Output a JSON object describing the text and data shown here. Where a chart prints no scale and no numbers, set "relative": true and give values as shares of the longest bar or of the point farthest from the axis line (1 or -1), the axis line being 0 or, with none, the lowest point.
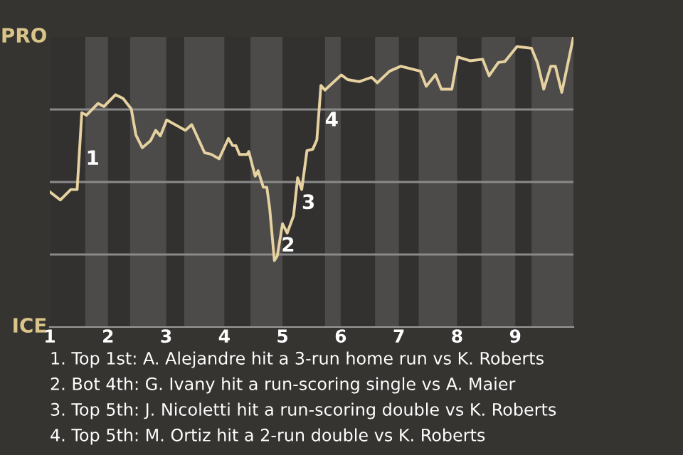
{
  "chart_data": {
    "type": "line",
    "relative": true,
    "x": [
      1.0,
      1.18,
      1.36,
      1.47,
      1.55,
      1.63,
      1.83,
      1.93,
      2.13,
      2.26,
      2.4,
      2.48,
      2.59,
      2.73,
      2.82,
      2.9,
      3.01,
      3.26,
      3.33,
      3.44,
      3.66,
      3.77,
      3.91,
      4.07,
      4.14,
      4.2,
      4.26,
      4.39,
      4.42,
      4.53,
      4.58,
      4.67,
      4.73,
      4.78,
      4.86,
      4.91,
      5.0,
      5.08,
      5.19,
      5.26,
      5.33,
      5.42,
      5.52,
      5.59,
      5.66,
      5.73,
      6.01,
      6.12,
      6.32,
      6.53,
      6.63,
      6.84,
      7.03,
      7.37,
      7.47,
      7.63,
      7.73,
      7.91,
      8.01,
      8.22,
      8.44,
      8.55,
      8.71,
      8.82,
      9.03,
      9.28,
      9.38,
      9.49,
      9.61,
      9.69,
      9.8,
      10.0
    ],
    "series": [
      {
        "color": "#e6d2a0",
        "values": [
          0.466,
          0.438,
          0.474,
          0.474,
          0.739,
          0.73,
          0.771,
          0.76,
          0.801,
          0.788,
          0.752,
          0.662,
          0.618,
          0.642,
          0.678,
          0.659,
          0.714,
          0.686,
          0.678,
          0.698,
          0.601,
          0.596,
          0.58,
          0.65,
          0.626,
          0.625,
          0.595,
          0.595,
          0.605,
          0.52,
          0.539,
          0.482,
          0.482,
          0.408,
          0.229,
          0.245,
          0.356,
          0.324,
          0.384,
          0.515,
          0.474,
          0.608,
          0.613,
          0.645,
          0.833,
          0.817,
          0.869,
          0.853,
          0.846,
          0.861,
          0.842,
          0.882,
          0.899,
          0.882,
          0.83,
          0.87,
          0.82,
          0.82,
          0.931,
          0.918,
          0.923,
          0.866,
          0.912,
          0.915,
          0.967,
          0.961,
          0.912,
          0.82,
          0.899,
          0.899,
          0.809,
          1.0
        ]
      }
    ],
    "xlim": [
      1,
      10
    ],
    "xticks": [
      1,
      2,
      3,
      4,
      5,
      6,
      7,
      8,
      9
    ],
    "grid": "y",
    "bands": [
      {
        "axis": "x",
        "from": 1.61,
        "to": 2,
        "color": "#4c4b4a"
      },
      {
        "axis": "x",
        "from": 2.38,
        "to": 3,
        "color": "#4c4b4a"
      },
      {
        "axis": "x",
        "from": 3.31,
        "to": 4,
        "color": "#4c4b4a"
      },
      {
        "axis": "x",
        "from": 4.45,
        "to": 5,
        "color": "#4c4b4a"
      },
      {
        "axis": "x",
        "from": 5.73,
        "to": 6,
        "color": "#4c4b4a"
      },
      {
        "axis": "x",
        "from": 6.59,
        "to": 7,
        "color": "#4c4b4a"
      },
      {
        "axis": "x",
        "from": 7.34,
        "to": 8,
        "color": "#4c4b4a"
      },
      {
        "axis": "x",
        "from": 8.42,
        "to": 9,
        "color": "#4c4b4a"
      },
      {
        "axis": "x",
        "from": 9.28,
        "to": 10,
        "color": "#4c4b4a"
      }
    ],
    "annotations": [
      "PRO",
      "ICE",
      {
        "text": "1",
        "x": 1.55,
        "y": 0.578
      },
      {
        "text": "2",
        "x": 4.91,
        "y": 0.279
      },
      {
        "text": "3",
        "x": 5.26,
        "y": 0.426
      },
      {
        "text": "4",
        "x": 5.66,
        "y": 0.711
      },
      "1. Top 1st: A. Alejandre hit a 3-run home run vs K. Roberts",
      "2. Bot 4th: G. Ivany hit a run-scoring single vs A. Maier",
      "3. Top 5th: J. Nicoletti hit a run-scoring double vs K. Roberts",
      "4. Top 5th: M. Ortiz hit a 2-run double vs K. Roberts"
    ]
  }
}
